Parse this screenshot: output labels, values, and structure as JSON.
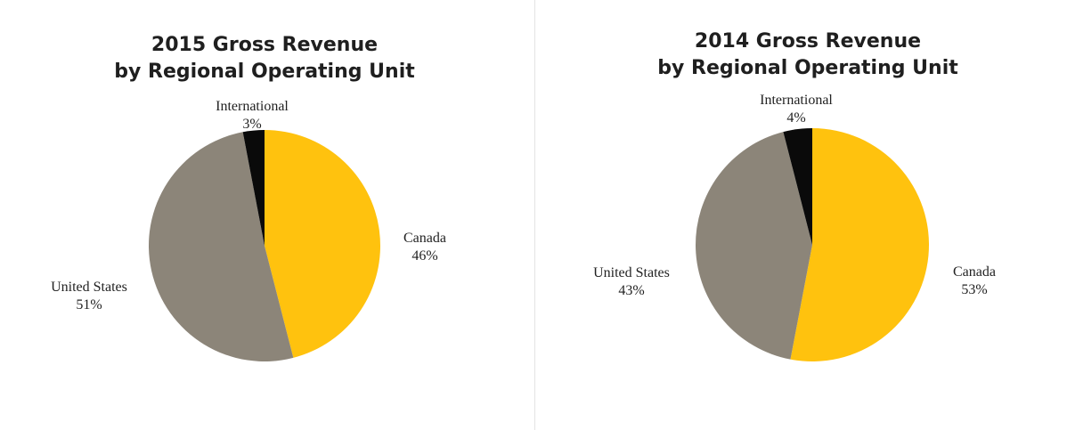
{
  "chart_data": [
    {
      "type": "pie",
      "title": [
        "2015 Gross Revenue",
        "by Regional Operating Unit"
      ],
      "slices": [
        {
          "label": "Canada",
          "value": 46,
          "value_text": "46%",
          "color": "#FFC20E"
        },
        {
          "label": "United States",
          "value": 51,
          "value_text": "51%",
          "color": "#8C8579"
        },
        {
          "label": "International",
          "value": 3,
          "value_text": "3%",
          "color": "#0A0A0A"
        }
      ]
    },
    {
      "type": "pie",
      "title": [
        "2014 Gross Revenue",
        "by Regional Operating Unit"
      ],
      "slices": [
        {
          "label": "Canada",
          "value": 53,
          "value_text": "53%",
          "color": "#FFC20E"
        },
        {
          "label": "United States",
          "value": 43,
          "value_text": "43%",
          "color": "#8C8579"
        },
        {
          "label": "International",
          "value": 4,
          "value_text": "4%",
          "color": "#0A0A0A"
        }
      ]
    }
  ]
}
